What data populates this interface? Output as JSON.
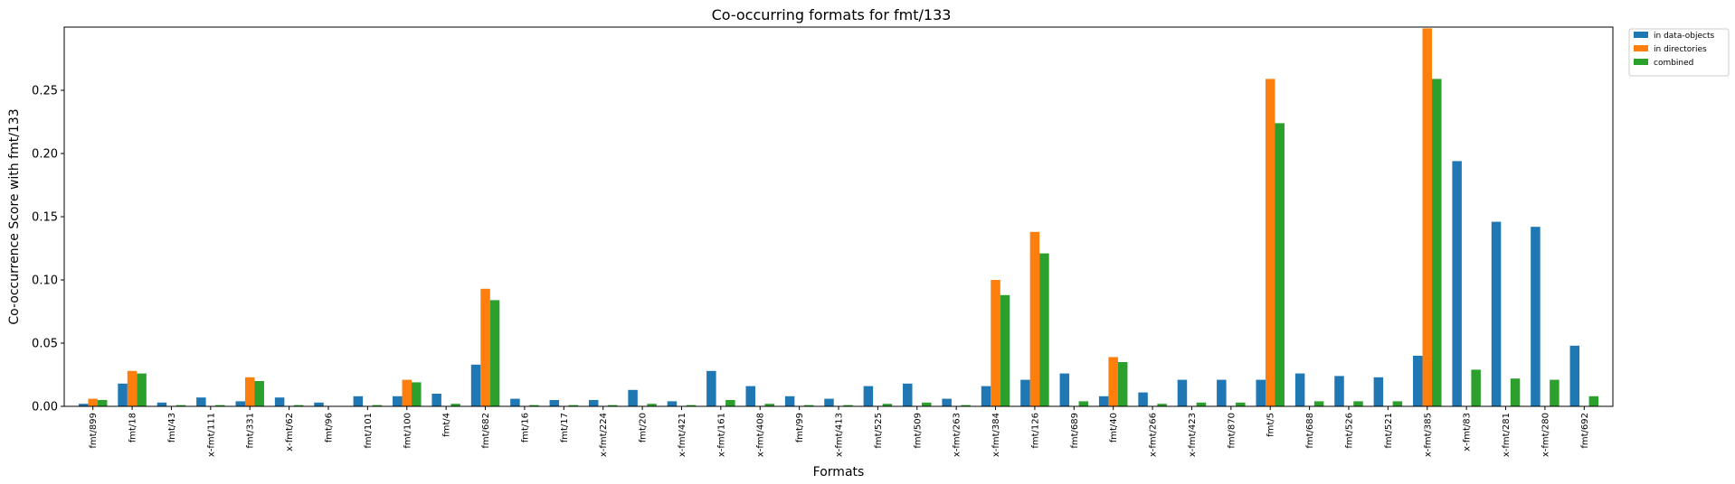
{
  "chart_data": {
    "type": "bar",
    "title": "Co-occurring formats for fmt/133",
    "xlabel": "Formats",
    "ylabel": "Co-occurrence Score with fmt/133",
    "ylim": [
      0,
      0.3
    ],
    "yticks": [
      0.0,
      0.05,
      0.1,
      0.15,
      0.2,
      0.25
    ],
    "ytick_labels": [
      "0.00",
      "0.05",
      "0.10",
      "0.15",
      "0.20",
      "0.25"
    ],
    "grid": false,
    "legend_position": "outside-top-right",
    "categories": [
      "fmt/899",
      "fmt/18",
      "fmt/43",
      "x-fmt/111",
      "fmt/331",
      "x-fmt/62",
      "fmt/96",
      "fmt/101",
      "fmt/100",
      "fmt/4",
      "fmt/682",
      "fmt/16",
      "fmt/17",
      "x-fmt/224",
      "fmt/20",
      "x-fmt/421",
      "x-fmt/161",
      "x-fmt/408",
      "fmt/99",
      "x-fmt/413",
      "fmt/525",
      "fmt/509",
      "x-fmt/263",
      "x-fmt/384",
      "fmt/126",
      "fmt/689",
      "fmt/40",
      "x-fmt/266",
      "x-fmt/423",
      "fmt/870",
      "fmt/5",
      "fmt/688",
      "fmt/526",
      "fmt/521",
      "x-fmt/385",
      "x-fmt/83",
      "x-fmt/281",
      "x-fmt/280",
      "fmt/692"
    ],
    "series": [
      {
        "name": "in data-objects",
        "color": "#1f77b4",
        "values": [
          0.002,
          0.018,
          0.003,
          0.007,
          0.004,
          0.007,
          0.003,
          0.008,
          0.008,
          0.01,
          0.033,
          0.006,
          0.005,
          0.005,
          0.013,
          0.004,
          0.028,
          0.016,
          0.008,
          0.006,
          0.016,
          0.018,
          0.006,
          0.016,
          0.021,
          0.026,
          0.008,
          0.011,
          0.021,
          0.021,
          0.021,
          0.026,
          0.024,
          0.023,
          0.04,
          0.194,
          0.146,
          0.142,
          0.048
        ]
      },
      {
        "name": "in directories",
        "color": "#ff7f0e",
        "values": [
          0.006,
          0.028,
          0.0,
          0.0,
          0.023,
          0.0,
          0.0,
          0.0,
          0.021,
          0.0,
          0.093,
          0.0,
          0.0,
          0.0,
          0.0,
          0.0,
          0.0,
          0.0,
          0.0,
          0.0,
          0.0,
          0.0,
          0.0,
          0.1,
          0.138,
          0.0,
          0.039,
          0.0,
          0.0,
          0.0,
          0.259,
          0.0,
          0.0,
          0.0,
          0.299,
          0.0,
          0.0,
          0.0,
          0.0
        ]
      },
      {
        "name": "combined",
        "color": "#2ca02c",
        "values": [
          0.005,
          0.026,
          0.001,
          0.001,
          0.02,
          0.001,
          0.0,
          0.001,
          0.019,
          0.002,
          0.084,
          0.001,
          0.001,
          0.001,
          0.002,
          0.001,
          0.005,
          0.002,
          0.001,
          0.001,
          0.002,
          0.003,
          0.001,
          0.088,
          0.121,
          0.004,
          0.035,
          0.002,
          0.003,
          0.003,
          0.224,
          0.004,
          0.004,
          0.004,
          0.259,
          0.029,
          0.022,
          0.021,
          0.008
        ]
      }
    ]
  }
}
